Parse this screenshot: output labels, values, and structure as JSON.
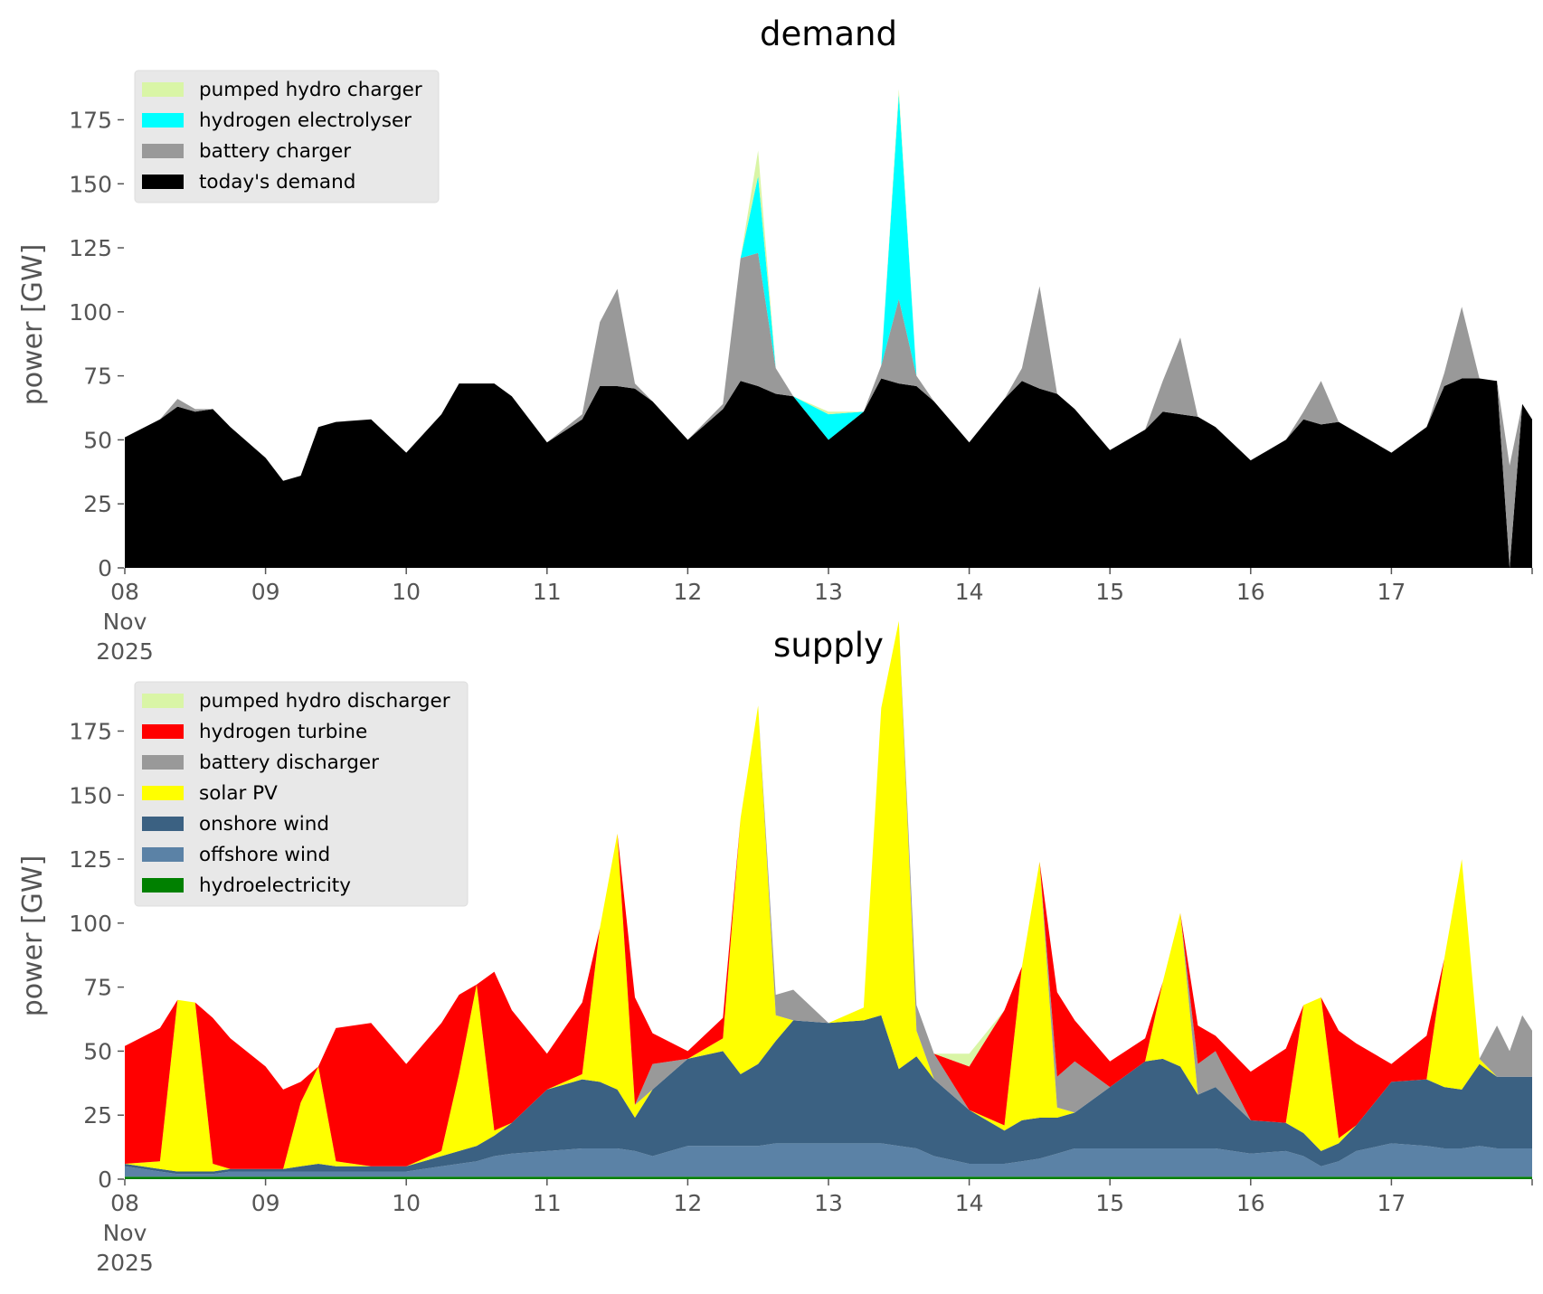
{
  "chart_data": [
    {
      "type": "area",
      "title": "demand",
      "ylabel": "power [GW]",
      "ylim": [
        0,
        190
      ],
      "yticks": [
        0,
        25,
        50,
        75,
        100,
        125,
        150,
        175
      ],
      "xticks": [
        {
          "day": 0,
          "label": [
            "08",
            "Nov",
            "2025"
          ]
        },
        {
          "day": 1,
          "label": [
            "09"
          ]
        },
        {
          "day": 2,
          "label": [
            "10"
          ]
        },
        {
          "day": 3,
          "label": [
            "11"
          ]
        },
        {
          "day": 4,
          "label": [
            "12"
          ]
        },
        {
          "day": 5,
          "label": [
            "13"
          ]
        },
        {
          "day": 6,
          "label": [
            "14"
          ]
        },
        {
          "day": 7,
          "label": [
            "15"
          ]
        },
        {
          "day": 8,
          "label": [
            "16"
          ]
        },
        {
          "day": 9,
          "label": [
            "17"
          ]
        }
      ],
      "legend": "top-left",
      "x_days": [
        0.0,
        0.25,
        0.375,
        0.5,
        0.625,
        0.75,
        1.0,
        1.125,
        1.25,
        1.375,
        1.5,
        1.75,
        2.0,
        2.25,
        2.375,
        2.5,
        2.625,
        2.75,
        3.0,
        3.25,
        3.375,
        3.5,
        3.625,
        3.75,
        4.0,
        4.25,
        4.375,
        4.5,
        4.625,
        4.75,
        5.0,
        5.25,
        5.375,
        5.5,
        5.625,
        5.75,
        6.0,
        6.25,
        6.375,
        6.5,
        6.625,
        6.75,
        7.0,
        7.25,
        7.375,
        7.5,
        7.625,
        7.75,
        8.0,
        8.25,
        8.375,
        8.5,
        8.625,
        8.75,
        9.0,
        9.25,
        9.375,
        9.5,
        9.625,
        9.75,
        9.84,
        9.93,
        10.0
      ],
      "series": [
        {
          "name": "today's demand",
          "color": "#000000",
          "values": [
            51,
            58,
            63,
            61,
            62,
            55,
            43,
            34,
            36,
            55,
            57,
            58,
            45,
            60,
            72,
            72,
            72,
            67,
            49,
            58,
            71,
            71,
            70,
            65,
            50,
            62,
            73,
            71,
            68,
            67,
            50,
            61,
            74,
            72,
            71,
            65,
            49,
            66,
            73,
            70,
            68,
            62,
            46,
            54,
            61,
            60,
            59,
            55,
            42,
            50,
            58,
            56,
            57,
            53,
            45,
            55,
            71,
            74,
            74,
            73,
            0,
            64,
            58
          ]
        },
        {
          "name": "battery charger",
          "color": "#999999",
          "values": [
            0,
            0,
            3,
            1,
            0,
            0,
            0,
            0,
            0,
            0,
            0,
            0,
            0,
            0,
            0,
            0,
            0,
            0,
            0,
            2,
            25,
            38,
            2,
            0,
            0,
            2,
            48,
            52,
            10,
            0,
            0,
            0,
            5,
            33,
            4,
            0,
            0,
            0,
            5,
            40,
            0,
            0,
            0,
            0,
            12,
            30,
            0,
            0,
            0,
            0,
            3,
            17,
            0,
            0,
            0,
            0,
            5,
            28,
            0,
            0,
            40,
            0,
            0
          ]
        },
        {
          "name": "hydrogen electrolyser",
          "color": "#00ffff",
          "values": [
            0,
            0,
            0,
            0,
            0,
            0,
            0,
            0,
            0,
            0,
            0,
            0,
            0,
            0,
            0,
            0,
            0,
            0,
            0,
            0,
            0,
            0,
            0,
            0,
            0,
            0,
            0,
            30,
            0,
            0,
            10,
            0,
            0,
            80,
            0,
            0,
            0,
            0,
            0,
            0,
            0,
            0,
            0,
            0,
            0,
            0,
            0,
            0,
            0,
            0,
            0,
            0,
            0,
            0,
            0,
            0,
            0,
            0,
            0,
            0,
            0,
            0,
            0
          ]
        },
        {
          "name": "pumped hydro charger",
          "color": "#d9f5a6",
          "values": [
            0,
            0,
            0,
            0,
            0,
            0,
            0,
            0,
            0,
            0,
            0,
            0,
            0,
            0,
            0,
            0,
            0,
            0,
            0,
            0,
            0,
            0,
            0,
            0,
            0,
            0,
            0,
            10,
            0,
            0,
            1,
            0,
            0,
            2,
            0,
            0,
            0,
            0,
            0,
            0,
            0,
            0,
            0,
            0,
            0,
            0,
            0,
            0,
            0,
            0,
            0,
            0,
            0,
            0,
            0,
            0,
            0,
            0,
            0,
            0,
            0,
            0,
            0
          ]
        }
      ],
      "legend_entries": [
        "pumped hydro charger",
        "hydrogen electrolyser",
        "battery charger",
        "today's demand"
      ]
    },
    {
      "type": "area",
      "title": "supply",
      "ylabel": "power [GW]",
      "ylim": [
        0,
        190
      ],
      "yticks": [
        0,
        25,
        50,
        75,
        100,
        125,
        150,
        175
      ],
      "xticks": [
        {
          "day": 0,
          "label": [
            "08",
            "Nov",
            "2025"
          ]
        },
        {
          "day": 1,
          "label": [
            "09"
          ]
        },
        {
          "day": 2,
          "label": [
            "10"
          ]
        },
        {
          "day": 3,
          "label": [
            "11"
          ]
        },
        {
          "day": 4,
          "label": [
            "12"
          ]
        },
        {
          "day": 5,
          "label": [
            "13"
          ]
        },
        {
          "day": 6,
          "label": [
            "14"
          ]
        },
        {
          "day": 7,
          "label": [
            "15"
          ]
        },
        {
          "day": 8,
          "label": [
            "16"
          ]
        },
        {
          "day": 9,
          "label": [
            "17"
          ]
        }
      ],
      "legend": "top-left",
      "x_days": [
        0.0,
        0.25,
        0.375,
        0.5,
        0.625,
        0.75,
        1.0,
        1.125,
        1.25,
        1.375,
        1.5,
        1.75,
        2.0,
        2.25,
        2.375,
        2.5,
        2.625,
        2.75,
        3.0,
        3.25,
        3.375,
        3.5,
        3.625,
        3.75,
        4.0,
        4.25,
        4.375,
        4.5,
        4.625,
        4.75,
        5.0,
        5.25,
        5.375,
        5.5,
        5.625,
        5.75,
        6.0,
        6.25,
        6.375,
        6.5,
        6.625,
        6.75,
        7.0,
        7.25,
        7.375,
        7.5,
        7.625,
        7.75,
        8.0,
        8.25,
        8.375,
        8.5,
        8.625,
        8.75,
        9.0,
        9.25,
        9.375,
        9.5,
        9.625,
        9.75,
        9.84,
        9.93,
        10.0
      ],
      "series": [
        {
          "name": "hydroelectricity",
          "color": "#008000",
          "values": [
            1,
            1,
            1,
            1,
            1,
            1,
            1,
            1,
            1,
            1,
            1,
            1,
            1,
            1,
            1,
            1,
            1,
            1,
            1,
            1,
            1,
            1,
            1,
            1,
            1,
            1,
            1,
            1,
            1,
            1,
            1,
            1,
            1,
            1,
            1,
            1,
            1,
            1,
            1,
            1,
            1,
            1,
            1,
            1,
            1,
            1,
            1,
            1,
            1,
            1,
            1,
            1,
            1,
            1,
            1,
            1,
            1,
            1,
            1,
            1,
            1,
            1,
            1
          ]
        },
        {
          "name": "offshore wind",
          "color": "#5b82a6",
          "values": [
            4,
            2,
            1,
            1,
            1,
            2,
            2,
            2,
            2,
            2,
            2,
            2,
            2,
            4,
            5,
            6,
            8,
            9,
            10,
            11,
            11,
            11,
            10,
            8,
            12,
            12,
            12,
            12,
            13,
            13,
            13,
            13,
            13,
            12,
            11,
            8,
            5,
            5,
            6,
            7,
            9,
            11,
            11,
            11,
            11,
            11,
            11,
            11,
            9,
            10,
            8,
            4,
            6,
            10,
            13,
            12,
            11,
            11,
            12,
            11,
            11,
            11,
            11
          ]
        },
        {
          "name": "onshore wind",
          "color": "#3b6182",
          "values": [
            1,
            1,
            1,
            1,
            1,
            1,
            1,
            1,
            2,
            3,
            2,
            2,
            2,
            4,
            5,
            6,
            8,
            12,
            24,
            27,
            26,
            23,
            13,
            26,
            34,
            37,
            28,
            32,
            40,
            48,
            47,
            48,
            50,
            30,
            36,
            30,
            21,
            13,
            16,
            16,
            14,
            14,
            24,
            34,
            35,
            32,
            21,
            24,
            13,
            11,
            9,
            6,
            7,
            10,
            24,
            26,
            24,
            23,
            32,
            28,
            28,
            28,
            28
          ]
        },
        {
          "name": "solar PV",
          "color": "#ffff00",
          "values": [
            0,
            3,
            67,
            66,
            3,
            0,
            0,
            0,
            25,
            38,
            2,
            0,
            0,
            2,
            30,
            63,
            2,
            0,
            0,
            2,
            60,
            100,
            5,
            0,
            0,
            5,
            100,
            140,
            10,
            0,
            0,
            5,
            120,
            175,
            10,
            0,
            0,
            2,
            60,
            100,
            4,
            0,
            0,
            0,
            30,
            60,
            0,
            0,
            0,
            0,
            50,
            60,
            2,
            0,
            0,
            0,
            50,
            90,
            2,
            0,
            0,
            0,
            0
          ]
        },
        {
          "name": "battery discharger",
          "color": "#999999",
          "values": [
            0,
            0,
            0,
            0,
            0,
            0,
            0,
            0,
            0,
            0,
            0,
            0,
            0,
            0,
            0,
            0,
            0,
            0,
            0,
            0,
            0,
            0,
            0,
            10,
            0,
            0,
            0,
            0,
            8,
            12,
            0,
            0,
            0,
            0,
            10,
            10,
            0,
            0,
            0,
            0,
            12,
            20,
            0,
            0,
            0,
            0,
            12,
            14,
            0,
            0,
            0,
            0,
            0,
            0,
            0,
            0,
            0,
            0,
            0,
            20,
            10,
            24,
            18
          ]
        },
        {
          "name": "hydrogen turbine",
          "color": "#ff0000",
          "values": [
            46,
            52,
            0,
            0,
            57,
            51,
            40,
            31,
            8,
            0,
            52,
            56,
            40,
            50,
            31,
            0,
            62,
            44,
            14,
            28,
            0,
            0,
            42,
            12,
            3,
            8,
            0,
            0,
            0,
            0,
            0,
            0,
            0,
            0,
            0,
            0,
            17,
            45,
            0,
            0,
            33,
            16,
            10,
            9,
            0,
            0,
            15,
            6,
            19,
            29,
            0,
            0,
            42,
            32,
            7,
            17,
            0,
            0,
            0,
            0,
            0,
            0,
            0
          ]
        },
        {
          "name": "pumped hydro discharger",
          "color": "#d9f5a6",
          "values": [
            0,
            0,
            0,
            0,
            0,
            0,
            0,
            0,
            0,
            0,
            0,
            0,
            0,
            0,
            0,
            0,
            0,
            0,
            0,
            0,
            0,
            0,
            0,
            0,
            0,
            0,
            0,
            0,
            0,
            0,
            0,
            0,
            0,
            0,
            0,
            0,
            5,
            0,
            0,
            0,
            0,
            0,
            0,
            0,
            0,
            0,
            0,
            0,
            0,
            0,
            0,
            0,
            0,
            0,
            0,
            0,
            0,
            0,
            0,
            0,
            0,
            0,
            0
          ]
        }
      ],
      "legend_entries": [
        "pumped hydro discharger",
        "hydrogen turbine",
        "battery discharger",
        "solar PV",
        "onshore wind",
        "offshore wind",
        "hydroelectricity"
      ]
    }
  ]
}
